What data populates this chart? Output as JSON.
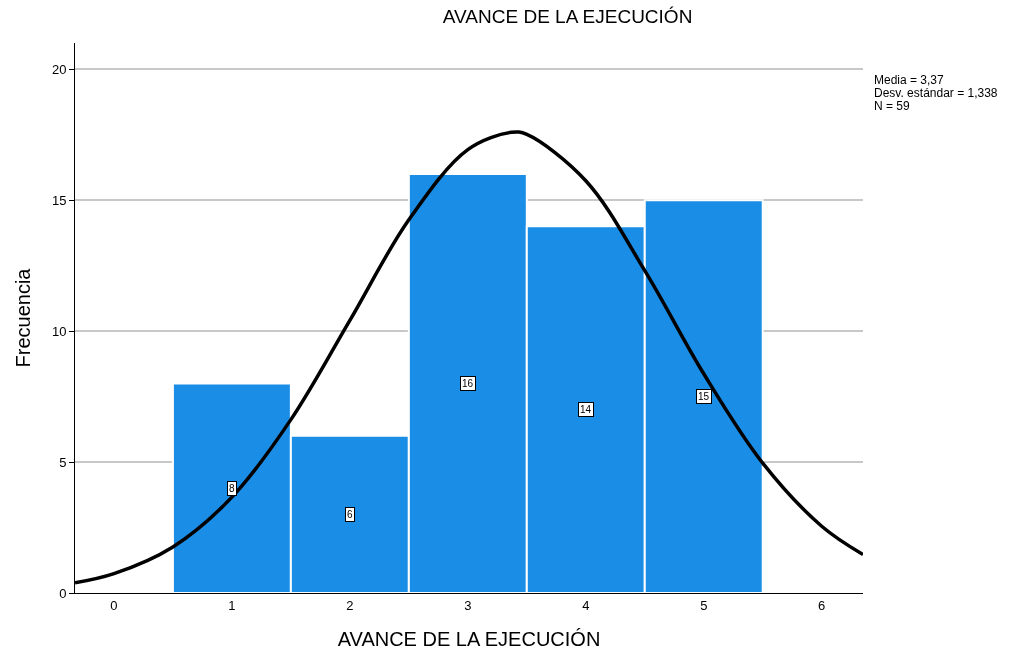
{
  "chart_data": {
    "type": "histogram",
    "title": "AVANCE DE LA EJECUCIÓN",
    "xlabel": "AVANCE DE LA EJECUCIÓN",
    "ylabel": "Frecuencia",
    "bins": [
      0.5,
      1.5,
      2.5,
      3.5,
      4.5,
      5.5
    ],
    "series": [
      {
        "color": "#1a8ee6",
        "values": [
          8,
          6,
          16,
          14,
          15
        ],
        "value_labels": [
          "8",
          "6",
          "16",
          "14",
          "15"
        ]
      },
      {
        "type": "line",
        "color": "#000000",
        "x": [
          -0.33,
          0,
          0.5,
          1,
          1.5,
          2,
          2.5,
          3,
          3.37,
          3.5,
          4,
          4.5,
          5,
          5.5,
          6,
          6.35
        ],
        "values": [
          0.39,
          0.74,
          1.76,
          3.66,
          6.62,
          10.41,
          14.25,
          16.93,
          17.59,
          17.51,
          15.74,
          12.31,
          8.37,
          4.96,
          2.55,
          1.47
        ]
      }
    ],
    "annotations": [
      "Media = 3,37",
      "Desv. estándar = 1,338",
      "N = 59"
    ],
    "xlim": [
      -0.33,
      6.35
    ],
    "xticks": [
      0,
      1,
      2,
      3,
      4,
      5,
      6
    ],
    "ylim": [
      0,
      21
    ],
    "yticks": [
      0,
      5,
      10,
      15,
      20
    ],
    "grid": "y",
    "legend": false,
    "line_style": "solid",
    "marker": "none"
  }
}
